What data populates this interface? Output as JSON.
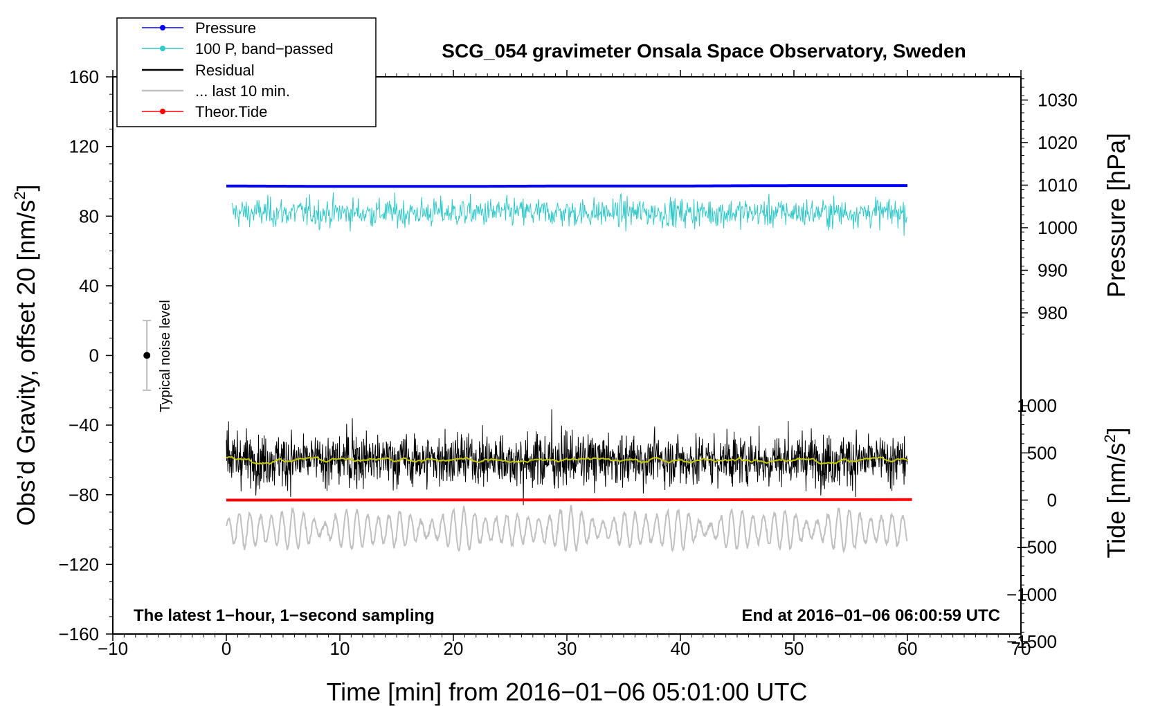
{
  "chart_data": {
    "type": "line",
    "title": "SCG_054 gravimeter Onsala Space Observatory, Sweden",
    "xlabel": "Time [min] from 2016−01−06 05:01:00 UTC",
    "ylabel_left_main": "Obs’d Gravity, offset 20 [nm/s",
    "ylabel_left_sup": "2",
    "ylabel_left_close": "]",
    "ylabel_right_top": "Pressure [hPa]",
    "ylabel_right_bottom_main": "Tide [nm/s",
    "ylabel_right_bottom_sup": "2",
    "ylabel_right_bottom_close": "]",
    "xlim": [
      -10,
      70
    ],
    "ylim": [
      -160,
      160
    ],
    "x_ticks": [
      -10,
      0,
      10,
      20,
      30,
      40,
      50,
      60,
      70
    ],
    "x_tick_labels": [
      "−10",
      "0",
      "10",
      "20",
      "30",
      "40",
      "50",
      "60",
      "70"
    ],
    "y_ticks": [
      -160,
      -120,
      -80,
      -40,
      0,
      40,
      80,
      120,
      160
    ],
    "y_tick_labels": [
      "−160",
      "−120",
      "−80",
      "−40",
      "0",
      "40",
      "80",
      "120",
      "160"
    ],
    "pressure_axis": {
      "ticks": [
        980,
        990,
        1000,
        1010,
        1020,
        1030
      ],
      "tick_labels": [
        "980",
        "990",
        "1000",
        "1010",
        "1020",
        "1030"
      ],
      "range": [
        975,
        1035
      ]
    },
    "tide_axis": {
      "ticks": [
        -1500,
        -1000,
        -500,
        0,
        500,
        1000
      ],
      "tick_labels": [
        "−1500",
        "−1000",
        "−500",
        "0",
        "500",
        "1000"
      ],
      "range": [
        -1500,
        1100
      ]
    },
    "legend": {
      "position": "top-left",
      "entries": [
        {
          "label": "Pressure",
          "color": "#0000ff",
          "marker": true
        },
        {
          "label": "100 P, band−passed",
          "color": "#30c8c8",
          "marker": true
        },
        {
          "label": "Residual",
          "color": "#000000",
          "marker": false
        },
        {
          "label": "... last 10 min.",
          "color": "#c0c0c0",
          "marker": false
        },
        {
          "label": "Theor.Tide",
          "color": "#ff0000",
          "marker": true
        }
      ]
    },
    "series": [
      {
        "name": "Pressure",
        "axis": "pressure_hPa",
        "color": "#0000ff",
        "x": [
          0,
          10,
          20,
          30,
          40,
          50,
          60
        ],
        "values": [
          1009.8,
          1009.7,
          1009.7,
          1009.8,
          1009.8,
          1009.9,
          1009.9
        ]
      },
      {
        "name": "100 P, band-passed",
        "axis": "gravity_nm_s2",
        "color": "#30c8c8",
        "x_range": [
          0.5,
          60
        ],
        "center": 82,
        "typical_amplitude": 6,
        "min": 57,
        "max": 96
      },
      {
        "name": "Residual",
        "axis": "gravity_nm_s2",
        "color": "#000000",
        "x_range": [
          0,
          60
        ],
        "center": -60,
        "typical_amplitude": 10,
        "min": -86,
        "max": -27
      },
      {
        "name": "Residual (smoothed)",
        "axis": "gravity_nm_s2",
        "color": "#c8c800",
        "x_range": [
          0,
          60
        ],
        "center": -60
      },
      {
        "name": "... last 10 min.",
        "axis": "gravity_nm_s2",
        "color": "#c0c0c0",
        "x_range": [
          0,
          60
        ],
        "center": -100,
        "typical_amplitude": 10,
        "min": -123,
        "max": -85
      },
      {
        "name": "Theor.Tide",
        "axis": "tide_nm_s2",
        "color": "#ff0000",
        "x": [
          0,
          60.4
        ],
        "values": [
          0,
          5
        ]
      }
    ],
    "noise_marker": {
      "label": "Typical noise level",
      "x": -7,
      "center": 0,
      "low": -20,
      "high": 20
    },
    "annotations": {
      "left": "The latest 1−hour, 1−second sampling",
      "right": "End at 2016−01−06 06:00:59 UTC"
    }
  }
}
